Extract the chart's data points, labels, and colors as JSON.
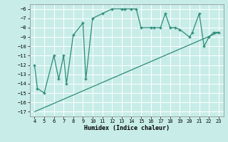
{
  "title": "",
  "xlabel": "Humidex (Indice chaleur)",
  "bg_color": "#c8ede8",
  "grid_color": "#ffffff",
  "line_color": "#2e8b78",
  "trend_color": "#2e8b78",
  "xlim": [
    3.5,
    23.5
  ],
  "ylim": [
    -17.5,
    -5.5
  ],
  "yticks": [
    -17,
    -16,
    -15,
    -14,
    -13,
    -12,
    -11,
    -10,
    -9,
    -8,
    -7,
    -6
  ],
  "xticks": [
    4,
    5,
    6,
    7,
    8,
    9,
    10,
    11,
    12,
    13,
    14,
    15,
    16,
    17,
    18,
    19,
    20,
    21,
    22,
    23
  ],
  "data_x": [
    4,
    4.3,
    5,
    6,
    6.5,
    7,
    7.3,
    8,
    9,
    9.3,
    10,
    11,
    12,
    13,
    13.3,
    14,
    14.5,
    15,
    16,
    16.3,
    17,
    17.5,
    18,
    18.5,
    19,
    20,
    20.3,
    21,
    21.5,
    22,
    22.5,
    23
  ],
  "data_y": [
    -12,
    -14.5,
    -15,
    -11,
    -13.5,
    -11,
    -14,
    -8.8,
    -7.5,
    -13.5,
    -7,
    -6.5,
    -6,
    -6,
    -6,
    -6,
    -6,
    -8,
    -8,
    -8,
    -8,
    -6.5,
    -8,
    -8,
    -8.2,
    -9,
    -8.5,
    -6.5,
    -10,
    -9,
    -8.5,
    -8.5
  ],
  "trend_x": [
    4,
    23
  ],
  "trend_y": [
    -17,
    -8.5
  ],
  "marker": "+"
}
